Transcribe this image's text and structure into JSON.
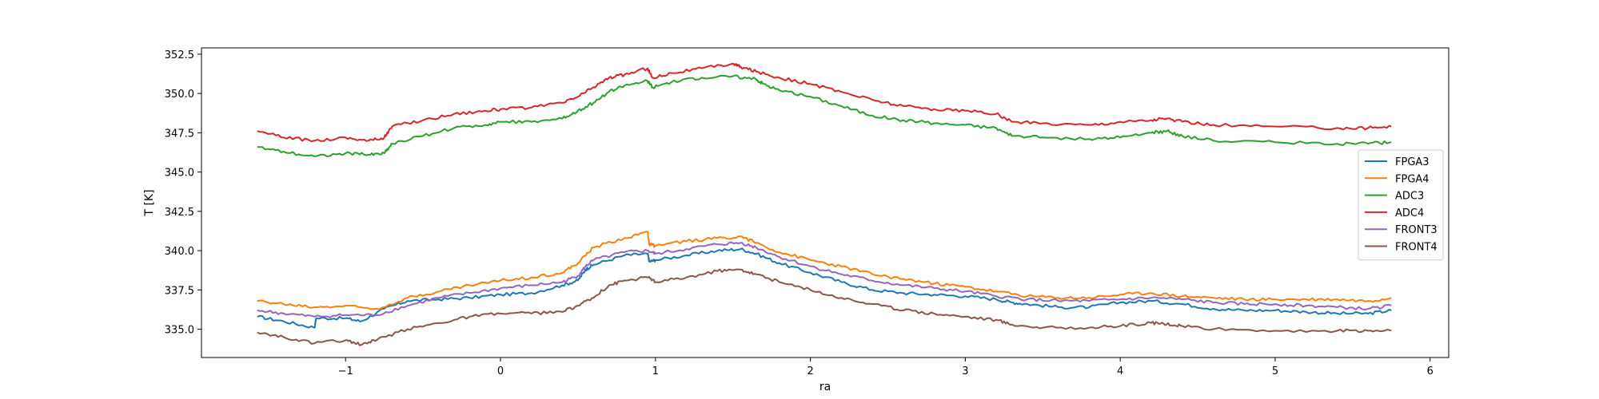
{
  "chart_data": {
    "type": "line",
    "title": "",
    "xlabel": "ra",
    "ylabel": "T [K]",
    "xlim": [
      -1.93,
      6.12
    ],
    "ylim": [
      333.2,
      352.9
    ],
    "xticks": [
      -1,
      0,
      1,
      2,
      3,
      4,
      5,
      6
    ],
    "yticks": [
      335.0,
      337.5,
      340.0,
      342.5,
      345.0,
      347.5,
      350.0,
      352.5
    ],
    "grid": false,
    "legend_position": "center-right",
    "series": [
      {
        "name": "FPGA3",
        "color": "#1f77b4",
        "x": [
          -1.57,
          -1.4,
          -1.2,
          -1.19,
          -1.0,
          -0.9,
          -0.75,
          -0.6,
          -0.4,
          -0.2,
          0.0,
          0.2,
          0.4,
          0.5,
          0.55,
          0.6,
          0.8,
          0.95,
          0.96,
          1.0,
          1.2,
          1.4,
          1.55,
          1.65,
          1.8,
          2.0,
          2.2,
          2.4,
          2.6,
          2.8,
          3.0,
          3.2,
          3.3,
          3.4,
          3.6,
          3.8,
          4.0,
          4.2,
          4.4,
          4.6,
          4.8,
          5.0,
          5.2,
          5.4,
          5.6,
          5.75
        ],
        "values": [
          335.8,
          335.5,
          335.1,
          335.7,
          335.7,
          335.5,
          336.3,
          336.8,
          336.9,
          337.0,
          337.2,
          337.3,
          337.8,
          338.1,
          338.8,
          339.1,
          339.7,
          339.8,
          339.3,
          339.4,
          339.7,
          340.0,
          340.1,
          339.8,
          339.2,
          338.6,
          338.0,
          337.5,
          337.3,
          337.2,
          337.1,
          336.9,
          336.7,
          336.6,
          336.4,
          336.4,
          336.7,
          336.8,
          336.6,
          336.3,
          336.2,
          336.2,
          336.1,
          336.0,
          336.0,
          336.2
        ]
      },
      {
        "name": "FPGA4",
        "color": "#ff7f0e",
        "x": [
          -1.57,
          -1.4,
          -1.2,
          -1.0,
          -0.8,
          -0.6,
          -0.4,
          -0.2,
          0.0,
          0.2,
          0.4,
          0.5,
          0.6,
          0.8,
          0.95,
          0.96,
          1.0,
          1.2,
          1.4,
          1.55,
          1.65,
          1.8,
          2.0,
          2.2,
          2.4,
          2.6,
          2.8,
          3.0,
          3.2,
          3.4,
          3.6,
          3.8,
          4.0,
          4.2,
          4.4,
          4.6,
          4.8,
          5.0,
          5.2,
          5.4,
          5.6,
          5.75
        ],
        "values": [
          336.8,
          336.6,
          336.4,
          336.5,
          336.3,
          337.0,
          337.4,
          337.8,
          338.1,
          338.3,
          338.6,
          339.2,
          340.2,
          340.8,
          341.2,
          340.4,
          340.3,
          340.6,
          340.8,
          340.9,
          340.5,
          339.9,
          339.4,
          339.0,
          338.5,
          338.2,
          337.9,
          337.7,
          337.4,
          337.1,
          337.0,
          337.0,
          337.2,
          337.3,
          337.1,
          337.0,
          336.9,
          336.9,
          336.9,
          336.9,
          336.8,
          337.0
        ]
      },
      {
        "name": "ADC3",
        "color": "#2ca02c",
        "x": [
          -1.57,
          -1.4,
          -1.2,
          -1.0,
          -0.85,
          -0.75,
          -0.7,
          -0.5,
          -0.3,
          -0.1,
          0.0,
          0.2,
          0.4,
          0.5,
          0.6,
          0.7,
          0.8,
          0.95,
          0.98,
          1.1,
          1.3,
          1.5,
          1.65,
          1.7,
          1.8,
          2.0,
          2.2,
          2.4,
          2.6,
          2.8,
          3.0,
          3.2,
          3.3,
          3.5,
          3.8,
          4.0,
          4.2,
          4.3,
          4.4,
          4.6,
          5.0,
          5.4,
          5.6,
          5.75
        ],
        "values": [
          346.6,
          346.3,
          346.0,
          346.2,
          346.1,
          346.2,
          346.8,
          347.3,
          347.8,
          348.0,
          348.2,
          348.2,
          348.4,
          348.9,
          349.4,
          350.1,
          350.5,
          350.8,
          350.4,
          350.7,
          351.0,
          351.1,
          350.9,
          350.6,
          350.2,
          349.8,
          349.2,
          348.6,
          348.3,
          348.1,
          348.0,
          347.8,
          347.3,
          347.2,
          347.1,
          347.2,
          347.5,
          347.6,
          347.3,
          347.0,
          346.9,
          346.8,
          346.8,
          346.9
        ]
      },
      {
        "name": "ADC4",
        "color": "#d62728",
        "x": [
          -1.57,
          -1.4,
          -1.2,
          -1.0,
          -0.85,
          -0.75,
          -0.7,
          -0.5,
          -0.3,
          -0.1,
          0.0,
          0.2,
          0.4,
          0.5,
          0.6,
          0.7,
          0.8,
          0.95,
          0.98,
          1.1,
          1.3,
          1.5,
          1.55,
          1.65,
          1.8,
          2.0,
          2.2,
          2.4,
          2.6,
          2.8,
          3.0,
          3.2,
          3.3,
          3.5,
          3.8,
          4.0,
          4.2,
          4.3,
          4.4,
          4.6,
          5.0,
          5.4,
          5.6,
          5.75
        ],
        "values": [
          347.6,
          347.2,
          347.0,
          347.2,
          347.0,
          347.2,
          347.9,
          348.3,
          348.7,
          348.9,
          349.0,
          349.1,
          349.4,
          349.8,
          350.4,
          351.0,
          351.2,
          351.6,
          351.0,
          351.3,
          351.6,
          351.9,
          351.7,
          351.4,
          351.0,
          350.6,
          350.1,
          349.6,
          349.2,
          349.0,
          348.9,
          348.7,
          348.2,
          348.1,
          348.0,
          348.2,
          348.3,
          348.4,
          348.2,
          348.0,
          347.9,
          347.8,
          347.8,
          347.9
        ]
      },
      {
        "name": "FRONT3",
        "color": "#9467bd",
        "x": [
          -1.57,
          -1.4,
          -1.2,
          -1.0,
          -0.8,
          -0.6,
          -0.4,
          -0.2,
          0.0,
          0.2,
          0.4,
          0.5,
          0.55,
          0.6,
          0.8,
          0.95,
          1.0,
          1.2,
          1.4,
          1.55,
          1.65,
          1.8,
          2.0,
          2.2,
          2.4,
          2.6,
          2.8,
          3.0,
          3.2,
          3.4,
          3.6,
          3.8,
          4.0,
          4.2,
          4.4,
          4.6,
          4.8,
          5.0,
          5.2,
          5.4,
          5.6,
          5.75
        ],
        "values": [
          336.2,
          336.0,
          335.8,
          335.9,
          335.9,
          336.5,
          337.0,
          337.3,
          337.6,
          337.8,
          338.0,
          338.4,
          339.0,
          339.4,
          339.9,
          340.0,
          339.8,
          340.1,
          340.4,
          340.5,
          340.2,
          339.6,
          339.0,
          338.5,
          338.1,
          337.8,
          337.6,
          337.4,
          337.1,
          336.9,
          336.8,
          336.8,
          336.9,
          337.0,
          336.9,
          336.7,
          336.6,
          336.6,
          336.5,
          336.4,
          336.3,
          336.5
        ]
      },
      {
        "name": "FRONT4",
        "color": "#8c564b",
        "x": [
          -1.57,
          -1.4,
          -1.2,
          -1.0,
          -0.9,
          -0.8,
          -0.6,
          -0.4,
          -0.2,
          0.0,
          0.2,
          0.4,
          0.5,
          0.6,
          0.7,
          0.8,
          0.95,
          1.0,
          1.2,
          1.4,
          1.55,
          1.65,
          1.8,
          2.0,
          2.2,
          2.4,
          2.6,
          2.8,
          3.0,
          3.2,
          3.3,
          3.5,
          3.8,
          4.0,
          4.2,
          4.3,
          4.4,
          4.6,
          5.0,
          5.4,
          5.6,
          5.75
        ],
        "values": [
          334.8,
          334.5,
          334.1,
          334.3,
          334.0,
          334.3,
          335.0,
          335.4,
          335.8,
          336.0,
          336.0,
          336.1,
          336.5,
          337.0,
          337.8,
          338.1,
          338.3,
          338.0,
          338.3,
          338.7,
          338.8,
          338.5,
          338.0,
          337.5,
          337.0,
          336.6,
          336.2,
          336.0,
          335.8,
          335.6,
          335.3,
          335.1,
          335.1,
          335.2,
          335.4,
          335.3,
          335.2,
          335.0,
          334.9,
          334.9,
          334.9,
          334.9
        ]
      }
    ]
  }
}
